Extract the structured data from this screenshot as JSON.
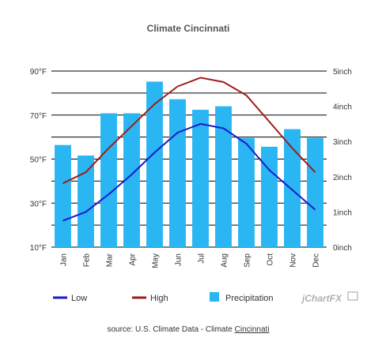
{
  "chart_data": {
    "type": "bar",
    "title": "Climate Cincinnati",
    "categories": [
      "Jan",
      "Feb",
      "Mar",
      "Apr",
      "May",
      "Jun",
      "Jul",
      "Aug",
      "Sep",
      "Oct",
      "Nov",
      "Dec"
    ],
    "y_left": {
      "ticks": [
        "10°F",
        "30°F",
        "50°F",
        "70°F",
        "90°F"
      ],
      "range": [
        10,
        90
      ]
    },
    "y_right": {
      "ticks": [
        "0inch",
        "1inch",
        "2inch",
        "3inch",
        "4inch",
        "5inch"
      ],
      "range": [
        0,
        5
      ]
    },
    "grid": true,
    "legend_position": "bottom",
    "series": [
      {
        "name": "Low",
        "type": "line",
        "axis": "left",
        "color": "#1a1acc",
        "values": [
          22,
          26,
          34,
          43,
          53,
          62,
          66,
          64,
          57,
          45,
          36,
          27
        ]
      },
      {
        "name": "High",
        "type": "line",
        "axis": "left",
        "color": "#a01c1c",
        "values": [
          39,
          44,
          55,
          65,
          75,
          83,
          87,
          85,
          79,
          67,
          55,
          44
        ]
      },
      {
        "name": "Precipitation",
        "type": "bar",
        "axis": "right",
        "color": "#29b6f2",
        "values": [
          2.9,
          2.6,
          3.8,
          3.8,
          4.7,
          4.2,
          3.9,
          4.0,
          3.1,
          2.85,
          3.35,
          3.1
        ]
      }
    ]
  },
  "brand": "jChartFX",
  "source": {
    "prefix": "source: U.S. Climate Data - Climate ",
    "link": "Cincinnati"
  }
}
